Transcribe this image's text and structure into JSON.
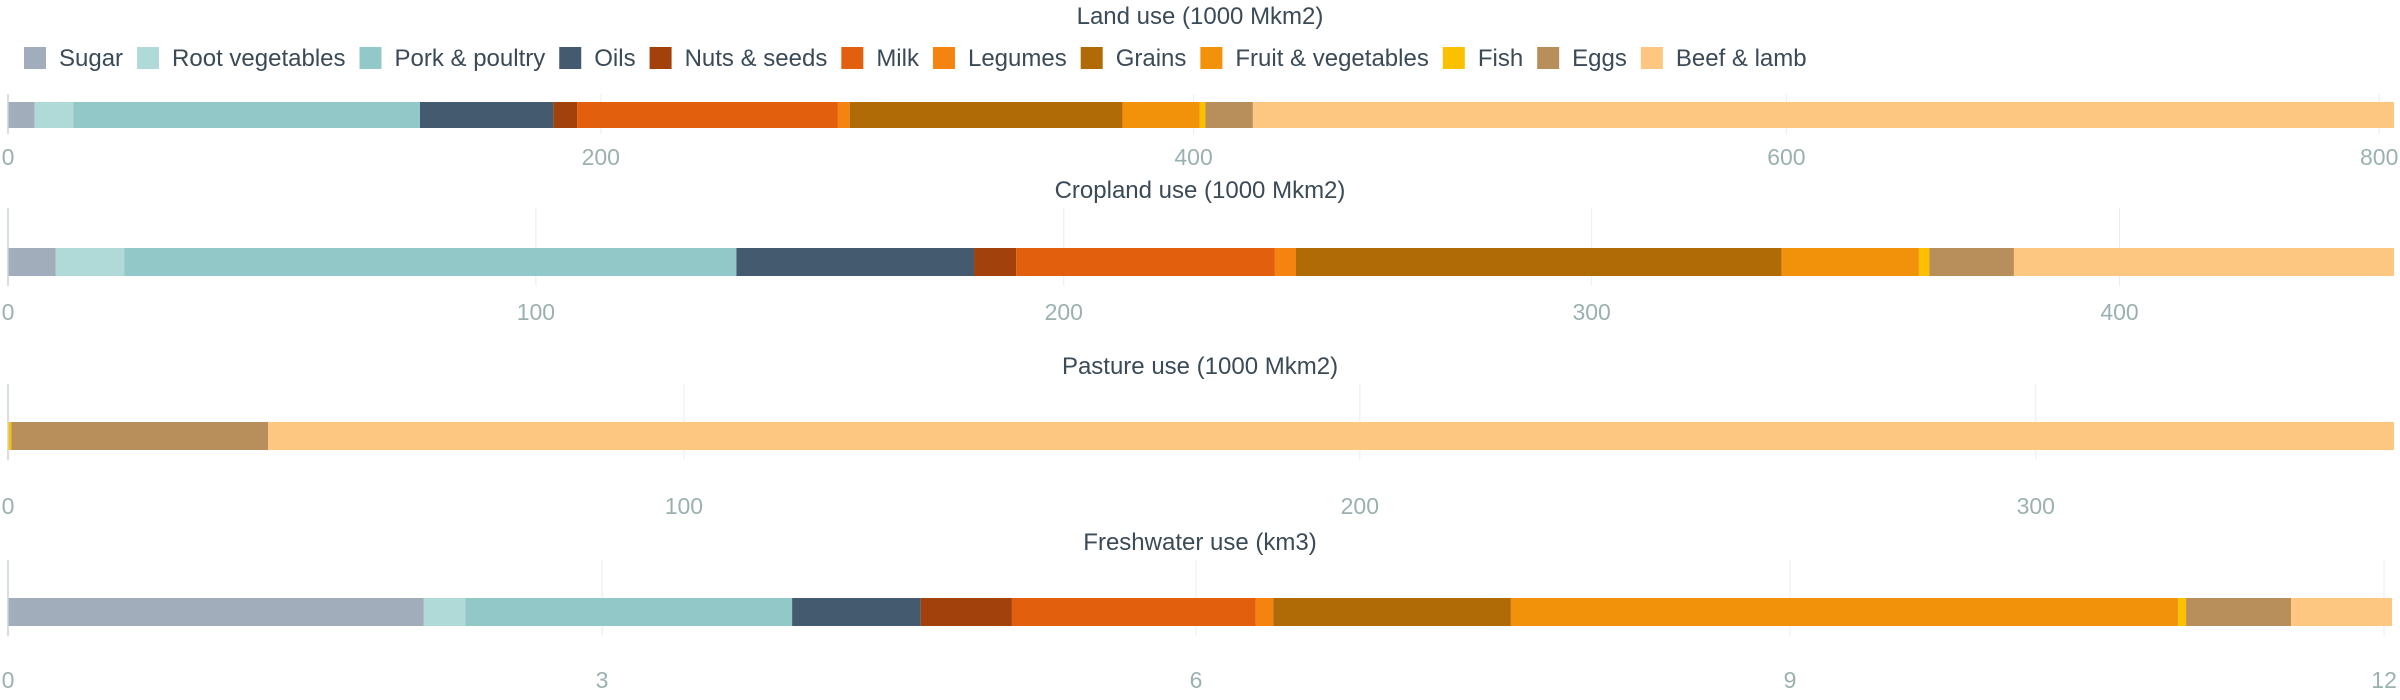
{
  "chart_data": {
    "type": "bar",
    "orientation": "horizontal-stacked",
    "legend_position": "top-left",
    "grid": true,
    "categories": [
      "Sugar",
      "Root vegetables",
      "Pork & poultry",
      "Oils",
      "Nuts & seeds",
      "Milk",
      "Legumes",
      "Grains",
      "Fruit & vegetables",
      "Fish",
      "Eggs",
      "Beef & lamb"
    ],
    "colors": [
      "#a1adba",
      "#b0dad8",
      "#93c8c8",
      "#445a6e",
      "#a2410b",
      "#e2600d",
      "#f5830f",
      "#b06a06",
      "#f2920a",
      "#fbc100",
      "#b88f5a",
      "#fec781"
    ],
    "panels": [
      {
        "title": "Land use (1000 Mkm2)",
        "xlim": [
          0,
          805
        ],
        "ticks": [
          "0",
          "200",
          "400",
          "600",
          "800"
        ],
        "tick_values": [
          0,
          200,
          400,
          600,
          800
        ],
        "values": [
          9,
          13,
          117,
          45,
          8,
          88,
          4,
          92,
          26,
          2,
          16,
          385
        ]
      },
      {
        "title": "Cropland use (1000 Mkm2)",
        "xlim": [
          0,
          452
        ],
        "ticks": [
          "0",
          "100",
          "200",
          "300",
          "400"
        ],
        "tick_values": [
          0,
          100,
          200,
          300,
          400
        ],
        "values": [
          9,
          13,
          116,
          45,
          8,
          49,
          4,
          92,
          26,
          2,
          16,
          72
        ]
      },
      {
        "title": "Pasture use (1000 Mkm2)",
        "xlim": [
          0,
          353
        ],
        "ticks": [
          "0",
          "100",
          "200",
          "300"
        ],
        "tick_values": [
          0,
          100,
          200,
          300
        ],
        "values": [
          0,
          0,
          0,
          0,
          0,
          0,
          0,
          0,
          0,
          0.5,
          38,
          314.5
        ]
      },
      {
        "title": "Freshwater use (km3)",
        "xlim": [
          0,
          12.05
        ],
        "ticks": [
          "0",
          "3",
          "6",
          "9",
          "12"
        ],
        "tick_values": [
          0,
          3,
          6,
          9,
          12
        ],
        "values": [
          2.1,
          0.21,
          1.65,
          0.65,
          0.46,
          1.23,
          0.09,
          1.2,
          3.37,
          0.04,
          0.53,
          0.51
        ]
      }
    ]
  }
}
